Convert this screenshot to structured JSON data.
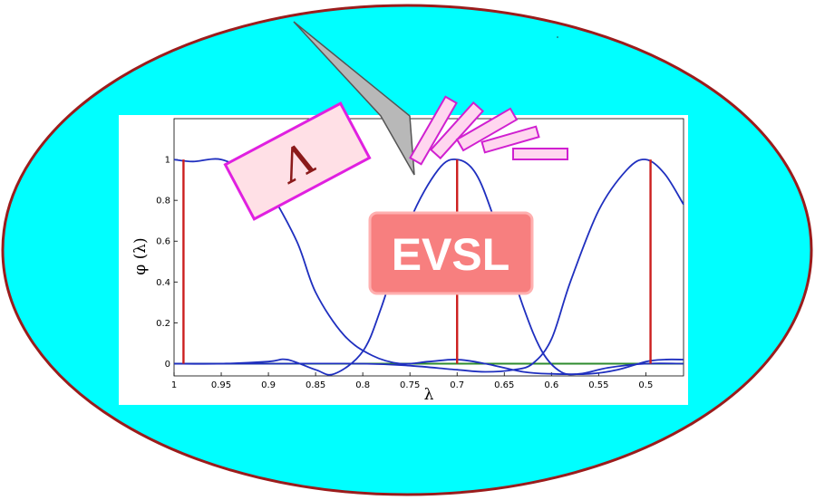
{
  "logo": {
    "text": "EVSL"
  },
  "lambda_badge": {
    "glyph": "Λ"
  },
  "colors": {
    "ellipse_fill": "#00ffff",
    "ellipse_stroke": "#9b1c1c",
    "filter_curve": "#1f2fbf",
    "eigen_bars": "#cc1f1f",
    "baseline": "#2e8b2e",
    "logo_fill": "#f77f7f",
    "badge_fill": "#ffe0e6",
    "badge_stroke": "#e020e0"
  },
  "chart_data": {
    "type": "line",
    "xlabel": "λ",
    "ylabel": "φ (λ)",
    "x_reversed": true,
    "xlim": [
      1.0,
      0.46
    ],
    "ylim": [
      -0.06,
      1.2
    ],
    "xticks": [
      "1",
      "0.95",
      "0.9",
      "0.85",
      "0.8",
      "0.75",
      "0.7",
      "0.65",
      "0.6",
      "0.55",
      "0.5"
    ],
    "yticks": [
      "0",
      "0.2",
      "0.4",
      "0.6",
      "0.8",
      "1"
    ],
    "eigen_bars": [
      0.99,
      0.7,
      0.495
    ],
    "series": [
      {
        "values": [
          [
            1.0,
            1.0
          ],
          [
            0.98,
            0.99
          ],
          [
            0.95,
            1.0
          ],
          [
            0.92,
            0.93
          ],
          [
            0.9,
            0.85
          ],
          [
            0.87,
            0.6
          ],
          [
            0.85,
            0.35
          ],
          [
            0.82,
            0.14
          ],
          [
            0.79,
            0.04
          ],
          [
            0.76,
            0.0
          ],
          [
            0.73,
            0.01
          ],
          [
            0.7,
            0.02
          ],
          [
            0.67,
            0.0
          ],
          [
            0.63,
            -0.04
          ],
          [
            0.6,
            -0.05
          ],
          [
            0.56,
            -0.05
          ],
          [
            0.53,
            -0.03
          ],
          [
            0.5,
            0.01
          ],
          [
            0.48,
            0.02
          ],
          [
            0.46,
            0.02
          ]
        ]
      },
      {
        "values": [
          [
            1.0,
            0.0
          ],
          [
            0.95,
            0.0
          ],
          [
            0.9,
            0.01
          ],
          [
            0.88,
            0.02
          ],
          [
            0.85,
            -0.03
          ],
          [
            0.83,
            -0.05
          ],
          [
            0.8,
            0.06
          ],
          [
            0.78,
            0.28
          ],
          [
            0.75,
            0.7
          ],
          [
            0.72,
            0.95
          ],
          [
            0.7,
            1.0
          ],
          [
            0.68,
            0.93
          ],
          [
            0.66,
            0.7
          ],
          [
            0.63,
            0.28
          ],
          [
            0.61,
            0.06
          ],
          [
            0.59,
            -0.04
          ],
          [
            0.57,
            -0.05
          ],
          [
            0.54,
            -0.02
          ],
          [
            0.5,
            0.0
          ],
          [
            0.46,
            0.0
          ]
        ]
      },
      {
        "values": [
          [
            1.0,
            0.0
          ],
          [
            0.9,
            0.0
          ],
          [
            0.8,
            0.0
          ],
          [
            0.75,
            -0.01
          ],
          [
            0.7,
            -0.03
          ],
          [
            0.67,
            -0.04
          ],
          [
            0.64,
            -0.03
          ],
          [
            0.62,
            0.0
          ],
          [
            0.6,
            0.12
          ],
          [
            0.58,
            0.4
          ],
          [
            0.55,
            0.75
          ],
          [
            0.52,
            0.95
          ],
          [
            0.5,
            1.0
          ],
          [
            0.48,
            0.93
          ],
          [
            0.46,
            0.78
          ]
        ]
      }
    ]
  }
}
